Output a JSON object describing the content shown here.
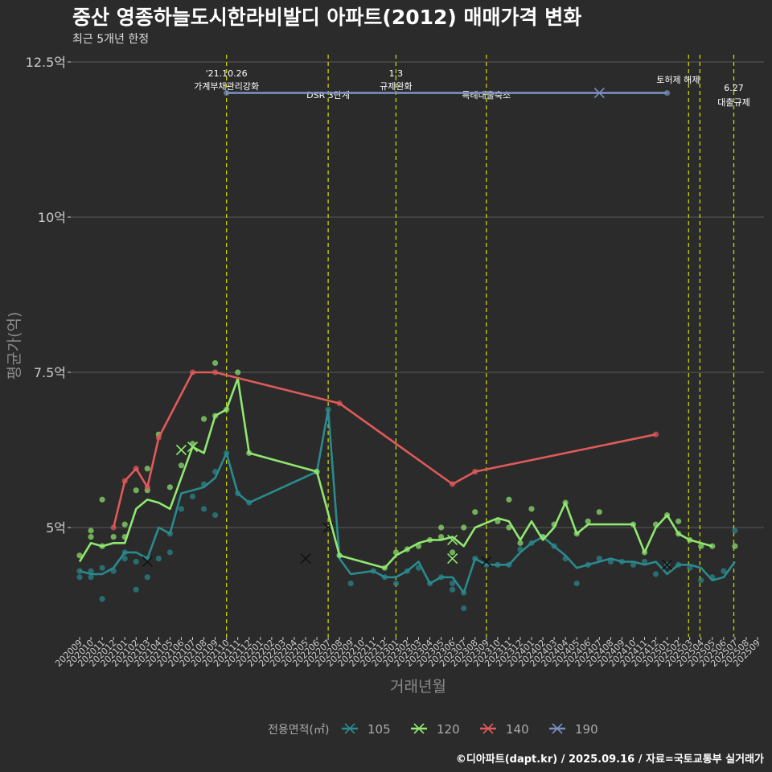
{
  "title": "중산 영종하늘도시한라비발디 아파트(2012) 매매가격 변화",
  "subtitle": "최근 5개년 한정",
  "credit": "©디아파트(dapt.kr) / 2025.09.16 / 자료=국토교통부 실거래가",
  "colors": {
    "background": "#2b2b2b",
    "grid": "#5a5a5a",
    "axis_text": "#cccccc",
    "vline": "#c8d400",
    "s105": "#2a8a8e",
    "s120": "#90e870",
    "s140": "#e05a5a",
    "s190": "#7890c0"
  },
  "chart_data": {
    "type": "line",
    "xlabel": "거래년월",
    "ylabel": "평균가(억)",
    "ylim": [
      3.3,
      12.5
    ],
    "y_ticks": [
      {
        "value": 5,
        "label": "5억"
      },
      {
        "value": 7.5,
        "label": "7.5억"
      },
      {
        "value": 10,
        "label": "10억"
      },
      {
        "value": 12.5,
        "label": "12.5억"
      }
    ],
    "x": [
      "202009",
      "202010",
      "202011",
      "202012",
      "202101",
      "202102",
      "202103",
      "202104",
      "202105",
      "202106",
      "202107",
      "202108",
      "202109",
      "202110",
      "202111",
      "202112",
      "202201",
      "202202",
      "202203",
      "202204",
      "202205",
      "202206",
      "202207",
      "202208",
      "202209",
      "202210",
      "202211",
      "202212",
      "202301",
      "202302",
      "202303",
      "202304",
      "202305",
      "202306",
      "202307",
      "202308",
      "202309",
      "202310",
      "202311",
      "202312",
      "202401",
      "202402",
      "202403",
      "202404",
      "202405",
      "202406",
      "202407",
      "202408",
      "202409",
      "202410",
      "202411",
      "202412",
      "202501",
      "202502",
      "202503",
      "202504",
      "202505",
      "202506",
      "202507",
      "202508",
      "202509"
    ],
    "legend_title": "전용면적(㎡)",
    "legend_position": "bottom",
    "series": [
      {
        "name": "105",
        "color": "#2a8a8e",
        "line": [
          [
            0,
            4.3
          ],
          [
            1,
            4.25
          ],
          [
            2,
            4.25
          ],
          [
            3,
            4.35
          ],
          [
            4,
            4.6
          ],
          [
            5,
            4.6
          ],
          [
            6,
            4.5
          ],
          [
            7,
            5.0
          ],
          [
            8,
            4.9
          ],
          [
            9,
            5.55
          ],
          [
            10,
            5.6
          ],
          [
            11,
            5.65
          ],
          [
            12,
            5.8
          ],
          [
            13,
            6.2
          ],
          [
            14,
            5.55
          ],
          [
            15,
            5.4
          ],
          [
            21,
            5.9
          ],
          [
            22,
            6.9
          ],
          [
            23,
            4.5
          ],
          [
            24,
            4.25
          ],
          [
            26,
            4.3
          ],
          [
            27,
            4.2
          ],
          [
            28,
            4.2
          ],
          [
            29,
            4.3
          ],
          [
            30,
            4.45
          ],
          [
            31,
            4.1
          ],
          [
            32,
            4.2
          ],
          [
            33,
            4.2
          ],
          [
            34,
            3.95
          ],
          [
            35,
            4.5
          ],
          [
            36,
            4.4
          ],
          [
            37,
            4.4
          ],
          [
            38,
            4.4
          ],
          [
            39,
            4.6
          ],
          [
            40,
            4.75
          ],
          [
            41,
            4.85
          ],
          [
            42,
            4.7
          ],
          [
            43,
            4.55
          ],
          [
            44,
            4.35
          ],
          [
            45,
            4.4
          ],
          [
            47,
            4.5
          ],
          [
            48,
            4.45
          ],
          [
            49,
            4.45
          ],
          [
            50,
            4.4
          ],
          [
            51,
            4.45
          ],
          [
            52,
            4.25
          ],
          [
            53,
            4.4
          ],
          [
            54,
            4.4
          ],
          [
            55,
            4.35
          ],
          [
            56,
            4.15
          ],
          [
            57,
            4.2
          ],
          [
            58,
            4.45
          ]
        ],
        "points": [
          [
            0,
            4.2
          ],
          [
            0,
            4.3
          ],
          [
            1,
            4.2
          ],
          [
            1,
            4.3
          ],
          [
            2,
            3.85
          ],
          [
            2,
            4.35
          ],
          [
            3,
            4.3
          ],
          [
            4,
            4.6
          ],
          [
            4,
            4.5
          ],
          [
            5,
            4.0
          ],
          [
            5,
            4.45
          ],
          [
            6,
            4.2
          ],
          [
            6,
            4.5
          ],
          [
            7,
            4.5
          ],
          [
            8,
            4.6
          ],
          [
            8,
            4.9
          ],
          [
            9,
            5.3
          ],
          [
            10,
            5.5
          ],
          [
            11,
            5.3
          ],
          [
            11,
            5.7
          ],
          [
            12,
            5.2
          ],
          [
            12,
            5.9
          ],
          [
            13,
            6.2
          ],
          [
            14,
            5.55
          ],
          [
            15,
            5.4
          ],
          [
            21,
            5.9
          ],
          [
            22,
            6.9
          ],
          [
            23,
            4.55
          ],
          [
            24,
            4.1
          ],
          [
            26,
            4.3
          ],
          [
            27,
            4.2
          ],
          [
            28,
            4.1
          ],
          [
            29,
            4.3
          ],
          [
            30,
            4.35
          ],
          [
            31,
            4.1
          ],
          [
            32,
            4.2
          ],
          [
            33,
            4.1
          ],
          [
            33,
            4.0
          ],
          [
            34,
            3.95
          ],
          [
            34,
            3.7
          ],
          [
            35,
            4.5
          ],
          [
            36,
            4.4
          ],
          [
            37,
            4.4
          ],
          [
            38,
            4.4
          ],
          [
            39,
            4.65
          ],
          [
            40,
            4.75
          ],
          [
            41,
            4.85
          ],
          [
            42,
            4.7
          ],
          [
            43,
            4.5
          ],
          [
            44,
            4.1
          ],
          [
            45,
            4.4
          ],
          [
            46,
            4.5
          ],
          [
            47,
            4.45
          ],
          [
            48,
            4.45
          ],
          [
            49,
            4.4
          ],
          [
            50,
            4.45
          ],
          [
            51,
            4.25
          ],
          [
            52,
            4.4
          ],
          [
            53,
            4.4
          ],
          [
            54,
            4.35
          ],
          [
            55,
            4.15
          ],
          [
            56,
            4.2
          ],
          [
            57,
            4.3
          ],
          [
            58,
            4.95
          ]
        ],
        "x_marks": [
          [
            6,
            4.45
          ],
          [
            20,
            4.5
          ],
          [
            22,
            5.0
          ],
          [
            36,
            4.45
          ],
          [
            52,
            4.4
          ]
        ]
      },
      {
        "name": "120",
        "color": "#90e870",
        "line": [
          [
            0,
            4.45
          ],
          [
            1,
            4.75
          ],
          [
            2,
            4.7
          ],
          [
            3,
            4.75
          ],
          [
            4,
            4.75
          ],
          [
            5,
            5.3
          ],
          [
            6,
            5.45
          ],
          [
            7,
            5.4
          ],
          [
            8,
            5.3
          ],
          [
            9,
            5.8
          ],
          [
            10,
            6.3
          ],
          [
            11,
            6.2
          ],
          [
            12,
            6.8
          ],
          [
            13,
            6.9
          ],
          [
            14,
            7.4
          ],
          [
            15,
            6.2
          ],
          [
            21,
            5.9
          ],
          [
            23,
            4.55
          ],
          [
            27,
            4.35
          ],
          [
            28,
            4.55
          ],
          [
            29,
            4.65
          ],
          [
            30,
            4.75
          ],
          [
            31,
            4.8
          ],
          [
            32,
            4.8
          ],
          [
            33,
            4.85
          ],
          [
            34,
            4.7
          ],
          [
            35,
            5.0
          ],
          [
            37,
            5.15
          ],
          [
            38,
            5.1
          ],
          [
            39,
            4.8
          ],
          [
            40,
            5.1
          ],
          [
            41,
            4.8
          ],
          [
            42,
            5.0
          ],
          [
            43,
            5.4
          ],
          [
            44,
            4.9
          ],
          [
            45,
            5.05
          ],
          [
            49,
            5.05
          ],
          [
            50,
            4.6
          ],
          [
            51,
            5.0
          ],
          [
            52,
            5.2
          ],
          [
            53,
            4.9
          ],
          [
            54,
            4.8
          ],
          [
            56,
            4.7
          ]
        ],
        "points": [
          [
            0,
            4.55
          ],
          [
            1,
            4.85
          ],
          [
            1,
            4.95
          ],
          [
            2,
            5.45
          ],
          [
            2,
            4.7
          ],
          [
            3,
            4.85
          ],
          [
            4,
            5.05
          ],
          [
            4,
            4.85
          ],
          [
            5,
            5.6
          ],
          [
            6,
            5.95
          ],
          [
            6,
            5.6
          ],
          [
            7,
            6.5
          ],
          [
            8,
            5.65
          ],
          [
            9,
            6.0
          ],
          [
            10,
            6.35
          ],
          [
            11,
            6.75
          ],
          [
            12,
            7.65
          ],
          [
            12,
            6.8
          ],
          [
            13,
            6.9
          ],
          [
            14,
            7.5
          ],
          [
            15,
            6.2
          ],
          [
            21,
            5.9
          ],
          [
            23,
            4.55
          ],
          [
            27,
            4.35
          ],
          [
            28,
            4.6
          ],
          [
            29,
            4.65
          ],
          [
            30,
            4.7
          ],
          [
            31,
            4.8
          ],
          [
            32,
            4.85
          ],
          [
            32,
            5.0
          ],
          [
            33,
            4.6
          ],
          [
            34,
            5.0
          ],
          [
            35,
            5.25
          ],
          [
            37,
            5.1
          ],
          [
            38,
            5.45
          ],
          [
            38,
            5.0
          ],
          [
            39,
            4.75
          ],
          [
            40,
            5.3
          ],
          [
            41,
            4.85
          ],
          [
            42,
            5.05
          ],
          [
            43,
            5.4
          ],
          [
            44,
            4.9
          ],
          [
            45,
            5.1
          ],
          [
            46,
            5.25
          ],
          [
            49,
            5.05
          ],
          [
            50,
            4.6
          ],
          [
            51,
            5.05
          ],
          [
            52,
            5.2
          ],
          [
            53,
            4.9
          ],
          [
            53,
            5.1
          ],
          [
            54,
            4.8
          ],
          [
            55,
            4.7
          ],
          [
            56,
            4.7
          ],
          [
            58,
            4.7
          ]
        ],
        "x_marks": [
          [
            9,
            6.25
          ],
          [
            10,
            6.3
          ],
          [
            33,
            4.8
          ],
          [
            33,
            4.5
          ]
        ]
      },
      {
        "name": "140",
        "color": "#e05a5a",
        "line": [
          [
            3,
            5.0
          ],
          [
            4,
            5.75
          ],
          [
            5,
            5.95
          ],
          [
            6,
            5.65
          ],
          [
            7,
            6.45
          ],
          [
            10,
            7.5
          ],
          [
            12,
            7.5
          ],
          [
            23,
            7.0
          ],
          [
            33,
            5.7
          ],
          [
            35,
            5.9
          ],
          [
            51,
            6.5
          ]
        ],
        "points": [
          [
            3,
            5.0
          ],
          [
            4,
            5.75
          ],
          [
            5,
            5.95
          ],
          [
            6,
            5.65
          ],
          [
            7,
            6.45
          ],
          [
            10,
            7.5
          ],
          [
            12,
            7.5
          ],
          [
            23,
            7.0
          ],
          [
            33,
            5.7
          ],
          [
            35,
            5.9
          ],
          [
            51,
            6.5
          ]
        ],
        "x_marks": []
      },
      {
        "name": "190",
        "color": "#7890c0",
        "line": [
          [
            13,
            12.0
          ],
          [
            52,
            12.0
          ]
        ],
        "points": [
          [
            13,
            12.0
          ],
          [
            52,
            12.0
          ]
        ],
        "x_marks": [
          [
            46,
            12.0
          ]
        ]
      }
    ],
    "events": [
      {
        "x": 13.0,
        "line1": "'21.10.26",
        "line2": "가계부채관리강화",
        "level": "high"
      },
      {
        "x": 22.0,
        "line1": "DSR 3단계",
        "line2": "",
        "level": "low"
      },
      {
        "x": 28.0,
        "line1": "1.3",
        "line2": "규제완화",
        "level": "high"
      },
      {
        "x": 36.0,
        "line1": "특례대출축소",
        "line2": "",
        "level": "low"
      },
      {
        "x": 53.9,
        "line1": "토허제 해제",
        "line2": "",
        "level": "mid"
      },
      {
        "x": 54.9,
        "line1": "",
        "line2": "",
        "level": "none"
      },
      {
        "x": 57.9,
        "line1": "6.27",
        "line2": "대출규제",
        "level": "right"
      }
    ]
  }
}
